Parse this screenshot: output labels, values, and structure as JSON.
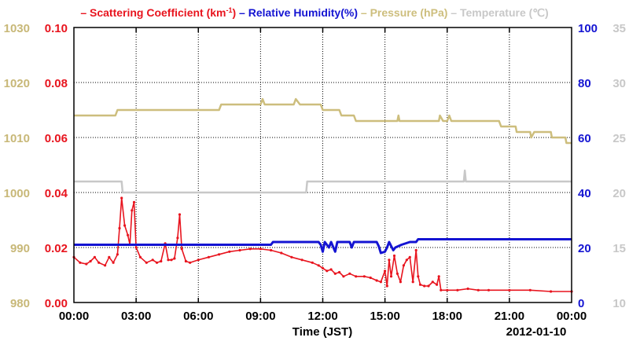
{
  "chart_data": {
    "type": "line",
    "legend": [
      {
        "text": "Scattering Coefficient (km",
        "sup": "-1",
        "after": ")",
        "color": "#e8141e"
      },
      {
        "text": "Relative Humidity(%)",
        "color": "#1414d2"
      },
      {
        "text": "Pressure (hPa)",
        "color": "#cdbe7d"
      },
      {
        "text": "Temperature (℃)",
        "color": "#c8c8c8"
      }
    ],
    "xlabel": "Time (JST)",
    "date_label": "2012-01-10",
    "x_ticks": [
      "00:00",
      "03:00",
      "06:00",
      "09:00",
      "12:00",
      "15:00",
      "18:00",
      "21:00",
      "00:00"
    ],
    "x_range_hours": [
      0,
      24
    ],
    "axes": {
      "pressure": {
        "ticks": [
          "1030",
          "1020",
          "1010",
          "1000",
          "990",
          "980"
        ],
        "range": [
          980,
          1030
        ],
        "color": "#c8b878"
      },
      "scattering": {
        "ticks": [
          "0.10",
          "0.08",
          "0.06",
          "0.04",
          "0.02",
          "0.00"
        ],
        "range": [
          0,
          0.1
        ],
        "color": "#e8141e"
      },
      "humidity": {
        "ticks": [
          "100",
          "80",
          "60",
          "40",
          "20",
          "0"
        ],
        "range": [
          0,
          100
        ],
        "color": "#1414d2"
      },
      "temperature": {
        "ticks": [
          "35",
          "30",
          "25",
          "20",
          "15",
          "10"
        ],
        "range": [
          10,
          35
        ],
        "color": "#c8c8c8"
      }
    },
    "grid": true,
    "series": [
      {
        "name": "Scattering Coefficient",
        "axis": "scattering",
        "color": "#e8141e",
        "markers": true,
        "points": [
          [
            0,
            0.0165
          ],
          [
            0.3,
            0.0145
          ],
          [
            0.6,
            0.014
          ],
          [
            0.8,
            0.015
          ],
          [
            1.0,
            0.0165
          ],
          [
            1.2,
            0.0145
          ],
          [
            1.5,
            0.0135
          ],
          [
            1.7,
            0.0165
          ],
          [
            1.9,
            0.0145
          ],
          [
            2.1,
            0.0175
          ],
          [
            2.2,
            0.027
          ],
          [
            2.3,
            0.038
          ],
          [
            2.45,
            0.028
          ],
          [
            2.6,
            0.0245
          ],
          [
            2.7,
            0.021
          ],
          [
            2.8,
            0.0335
          ],
          [
            2.9,
            0.0365
          ],
          [
            3.0,
            0.02
          ],
          [
            3.2,
            0.0165
          ],
          [
            3.5,
            0.0145
          ],
          [
            3.8,
            0.0155
          ],
          [
            4.0,
            0.0145
          ],
          [
            4.2,
            0.015
          ],
          [
            4.4,
            0.0215
          ],
          [
            4.55,
            0.0155
          ],
          [
            4.7,
            0.0155
          ],
          [
            4.85,
            0.016
          ],
          [
            5.0,
            0.0235
          ],
          [
            5.1,
            0.032
          ],
          [
            5.2,
            0.0195
          ],
          [
            5.4,
            0.015
          ],
          [
            5.6,
            0.0145
          ],
          [
            6.0,
            0.0155
          ],
          [
            6.5,
            0.0165
          ],
          [
            7.0,
            0.0175
          ],
          [
            7.5,
            0.0185
          ],
          [
            8.0,
            0.019
          ],
          [
            8.5,
            0.0195
          ],
          [
            9.0,
            0.0195
          ],
          [
            9.5,
            0.019
          ],
          [
            10.0,
            0.018
          ],
          [
            10.5,
            0.0165
          ],
          [
            11.0,
            0.0155
          ],
          [
            11.5,
            0.0145
          ],
          [
            11.8,
            0.0135
          ],
          [
            12.0,
            0.0125
          ],
          [
            12.2,
            0.0115
          ],
          [
            12.4,
            0.012
          ],
          [
            12.6,
            0.0105
          ],
          [
            12.8,
            0.011
          ],
          [
            13.0,
            0.0095
          ],
          [
            13.3,
            0.0105
          ],
          [
            13.6,
            0.0095
          ],
          [
            14.0,
            0.0095
          ],
          [
            14.3,
            0.009
          ],
          [
            14.6,
            0.008
          ],
          [
            14.8,
            0.0075
          ],
          [
            15.0,
            0.0115
          ],
          [
            15.1,
            0.006
          ],
          [
            15.2,
            0.0155
          ],
          [
            15.3,
            0.0095
          ],
          [
            15.45,
            0.017
          ],
          [
            15.6,
            0.0105
          ],
          [
            15.75,
            0.0075
          ],
          [
            15.9,
            0.0135
          ],
          [
            16.05,
            0.0155
          ],
          [
            16.2,
            0.0165
          ],
          [
            16.35,
            0.0075
          ],
          [
            16.5,
            0.019
          ],
          [
            16.6,
            0.0095
          ],
          [
            16.7,
            0.0065
          ],
          [
            16.9,
            0.006
          ],
          [
            17.1,
            0.006
          ],
          [
            17.3,
            0.0075
          ],
          [
            17.5,
            0.0065
          ],
          [
            17.6,
            0.0095
          ],
          [
            17.7,
            0.0045
          ],
          [
            18.0,
            0.0045
          ],
          [
            18.5,
            0.0045
          ],
          [
            19.0,
            0.005
          ],
          [
            19.5,
            0.0045
          ],
          [
            20.0,
            0.0045
          ],
          [
            21.0,
            0.0045
          ],
          [
            22.0,
            0.0045
          ],
          [
            23.0,
            0.004
          ],
          [
            24.0,
            0.004
          ]
        ]
      },
      {
        "name": "Relative Humidity",
        "axis": "humidity",
        "color": "#1414d2",
        "markers": false,
        "points": [
          [
            0,
            21
          ],
          [
            9.5,
            21
          ],
          [
            9.6,
            22
          ],
          [
            11.8,
            22
          ],
          [
            11.9,
            21
          ],
          [
            12.0,
            18.5
          ],
          [
            12.1,
            22
          ],
          [
            12.3,
            20
          ],
          [
            12.4,
            22
          ],
          [
            12.6,
            18.5
          ],
          [
            12.7,
            22
          ],
          [
            13.3,
            22
          ],
          [
            13.4,
            20
          ],
          [
            13.5,
            22
          ],
          [
            14.6,
            22
          ],
          [
            14.7,
            20.5
          ],
          [
            14.8,
            18
          ],
          [
            15.0,
            18.5
          ],
          [
            15.1,
            20
          ],
          [
            15.2,
            22
          ],
          [
            15.4,
            19
          ],
          [
            15.5,
            20
          ],
          [
            15.8,
            21
          ],
          [
            16.2,
            22
          ],
          [
            16.5,
            22
          ],
          [
            16.6,
            23
          ],
          [
            17.6,
            23
          ],
          [
            17.7,
            23
          ],
          [
            24,
            23
          ]
        ]
      },
      {
        "name": "Pressure",
        "axis": "pressure",
        "color": "#cdbe7d",
        "markers": false,
        "points": [
          [
            0,
            1014
          ],
          [
            2.0,
            1014
          ],
          [
            2.1,
            1015
          ],
          [
            7.0,
            1015
          ],
          [
            7.1,
            1016
          ],
          [
            9.0,
            1016
          ],
          [
            9.1,
            1017
          ],
          [
            9.2,
            1016
          ],
          [
            10.6,
            1016
          ],
          [
            10.7,
            1017
          ],
          [
            10.9,
            1016
          ],
          [
            11.9,
            1016
          ],
          [
            12.0,
            1015
          ],
          [
            12.8,
            1015
          ],
          [
            12.9,
            1014
          ],
          [
            13.5,
            1014
          ],
          [
            13.6,
            1013
          ],
          [
            15.6,
            1013
          ],
          [
            15.65,
            1014
          ],
          [
            15.7,
            1013
          ],
          [
            17.6,
            1013
          ],
          [
            17.65,
            1014
          ],
          [
            17.8,
            1013
          ],
          [
            18.0,
            1013
          ],
          [
            18.1,
            1014
          ],
          [
            18.2,
            1013
          ],
          [
            20.5,
            1013
          ],
          [
            20.6,
            1012
          ],
          [
            21.3,
            1012
          ],
          [
            21.35,
            1011
          ],
          [
            22.0,
            1011
          ],
          [
            22.05,
            1010
          ],
          [
            22.2,
            1011
          ],
          [
            23.0,
            1011
          ],
          [
            23.05,
            1010
          ],
          [
            23.7,
            1010
          ],
          [
            23.75,
            1009
          ],
          [
            24,
            1009
          ]
        ]
      },
      {
        "name": "Temperature",
        "axis": "temperature",
        "color": "#c8c8c8",
        "markers": false,
        "points": [
          [
            0,
            21
          ],
          [
            2.3,
            21
          ],
          [
            2.35,
            20
          ],
          [
            11.2,
            20
          ],
          [
            11.25,
            21
          ],
          [
            18.8,
            21
          ],
          [
            18.85,
            22
          ],
          [
            18.9,
            21
          ],
          [
            24,
            21
          ]
        ]
      }
    ]
  }
}
